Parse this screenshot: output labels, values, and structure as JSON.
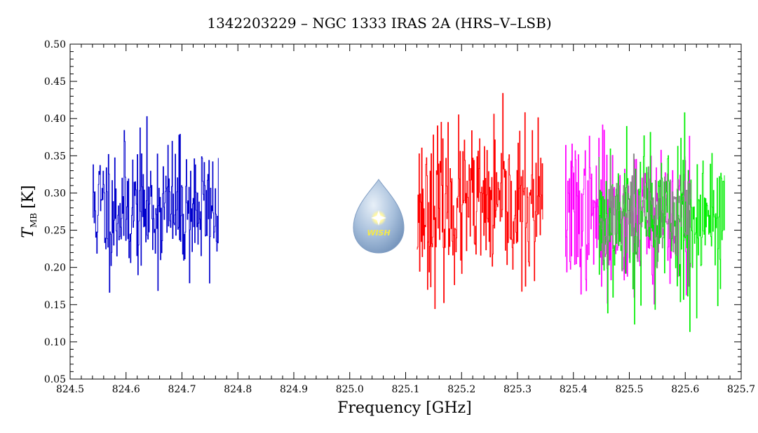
{
  "chart_data": {
    "type": "line",
    "title": "1342203229 – NGC 1333 IRAS 2A (HRS–V–LSB)",
    "xlabel": "Frequency [GHz]",
    "ylabel_main": "T",
    "ylabel_sub": "MB",
    "ylabel_unit": "[K]",
    "xlim": [
      824.5,
      825.7
    ],
    "ylim": [
      0.05,
      0.5
    ],
    "xticks": [
      "824.5",
      "824.6",
      "824.7",
      "824.8",
      "824.9",
      "825.0",
      "825.1",
      "825.2",
      "825.3",
      "825.4",
      "825.5",
      "825.6",
      "825.7"
    ],
    "yticks": [
      "0.05",
      "0.10",
      "0.15",
      "0.20",
      "0.25",
      "0.30",
      "0.35",
      "0.40",
      "0.45",
      "0.50"
    ],
    "grid": false,
    "series": [
      {
        "color": "#0000cc",
        "x_range": [
          824.54,
          824.765
        ],
        "mean": 0.28,
        "noise": 0.045,
        "seed": 11,
        "n": 240
      },
      {
        "color": "#ff0000",
        "x_range": [
          825.12,
          825.345
        ],
        "mean": 0.28,
        "noise": 0.05,
        "seed": 23,
        "n": 240
      },
      {
        "color": "#ff00ff",
        "x_range": [
          825.385,
          825.61
        ],
        "mean": 0.27,
        "noise": 0.05,
        "seed": 37,
        "n": 240
      },
      {
        "color": "#00ee00",
        "x_range": [
          825.445,
          825.67
        ],
        "mean": 0.27,
        "noise": 0.055,
        "seed": 53,
        "n": 240
      },
      {
        "color": "#888888",
        "x_range": [
          825.445,
          825.61
        ],
        "mean": 0.27,
        "noise": 0.035,
        "seed": 71,
        "n": 120
      }
    ]
  },
  "logo": {
    "text": "WISH"
  }
}
